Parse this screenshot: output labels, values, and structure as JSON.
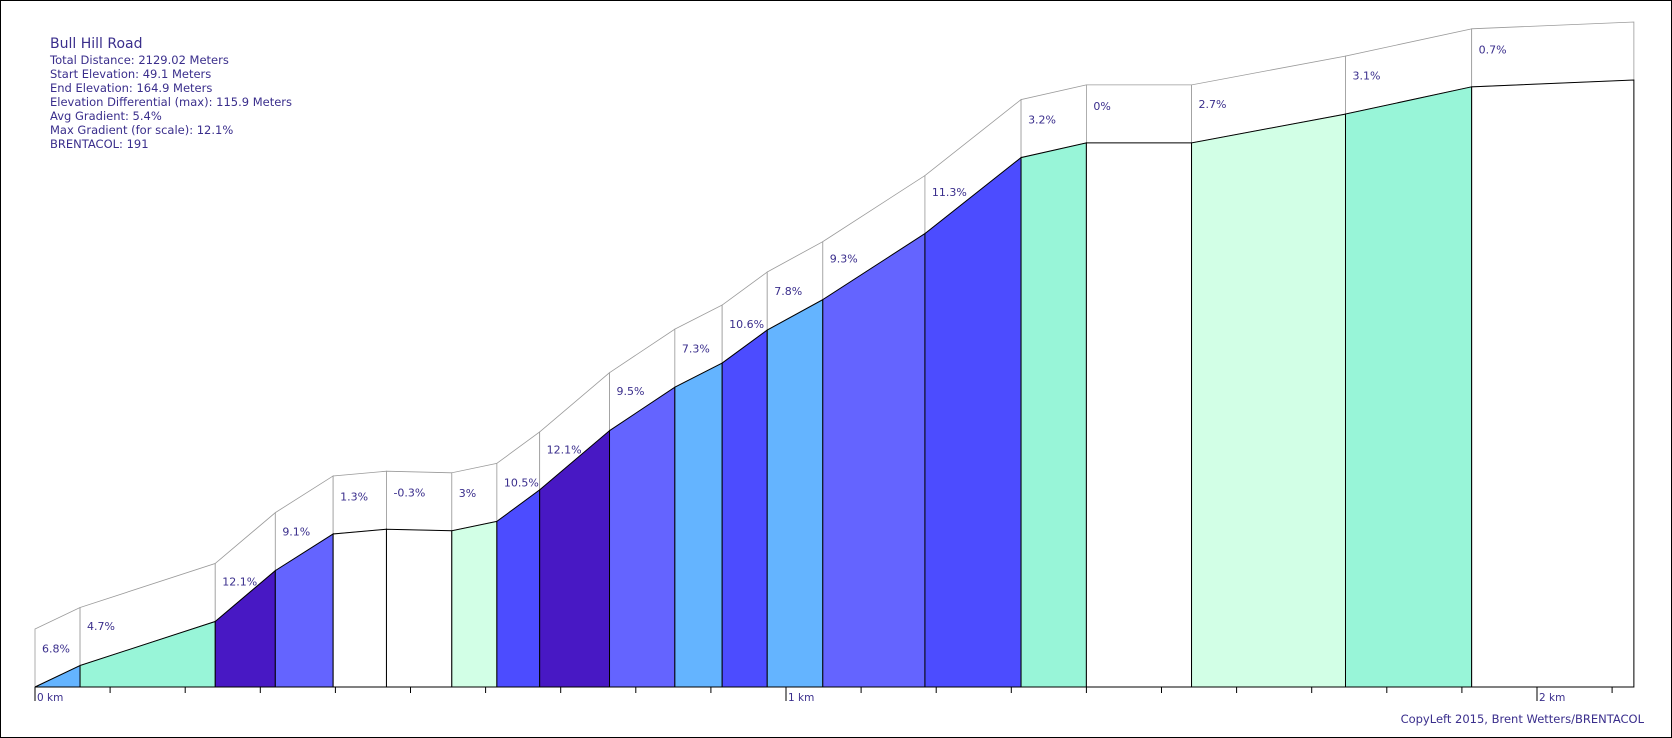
{
  "info": {
    "title": "Bull Hill Road",
    "total_distance": "Total Distance: 2129.02 Meters",
    "start_elevation": "Start Elevation: 49.1 Meters",
    "end_elevation": "End Elevation: 164.9 Meters",
    "elevation_differential": "Elevation Differential (max): 115.9 Meters",
    "avg_gradient": "Avg Gradient: 5.4%",
    "max_gradient": "Max Gradient (for scale): 12.1%",
    "brentacol": "BRENTACOL: 191"
  },
  "credit": "CopyLeft 2015, Brent Wetters/BRENTACOL",
  "chart_data": {
    "type": "area",
    "x_unit": "km",
    "y_unit": "m",
    "xlim": [
      0,
      2.129
    ],
    "ylim": [
      49.1,
      164.9
    ],
    "x_tick_labels": [
      {
        "value": 0,
        "label": "0 km"
      },
      {
        "value": 1,
        "label": "1 km"
      },
      {
        "value": 2,
        "label": "2 km"
      }
    ],
    "minor_tick_step_km": 0.1,
    "segments": [
      {
        "x0": 0.0,
        "x1": 0.06,
        "e0": 49.1,
        "e1": 53.2,
        "gradient": "6.8%",
        "color": "#64b4ff"
      },
      {
        "x0": 0.06,
        "x1": 0.24,
        "e0": 53.2,
        "e1": 61.6,
        "gradient": "4.7%",
        "color": "#98f5d8"
      },
      {
        "x0": 0.24,
        "x1": 0.32,
        "e0": 61.6,
        "e1": 71.3,
        "gradient": "12.1%",
        "color": "#4818c4"
      },
      {
        "x0": 0.32,
        "x1": 0.397,
        "e0": 71.3,
        "e1": 78.3,
        "gradient": "9.1%",
        "color": "#6464ff"
      },
      {
        "x0": 0.397,
        "x1": 0.468,
        "e0": 78.3,
        "e1": 79.2,
        "gradient": "1.3%",
        "color": "#ffffff"
      },
      {
        "x0": 0.468,
        "x1": 0.555,
        "e0": 79.2,
        "e1": 78.9,
        "gradient": "-0.3%",
        "color": "#ffffff"
      },
      {
        "x0": 0.555,
        "x1": 0.615,
        "e0": 78.9,
        "e1": 80.7,
        "gradient": "3%",
        "color": "#d2ffe6"
      },
      {
        "x0": 0.615,
        "x1": 0.672,
        "e0": 80.7,
        "e1": 86.7,
        "gradient": "10.5%",
        "color": "#4c4cff"
      },
      {
        "x0": 0.672,
        "x1": 0.765,
        "e0": 86.7,
        "e1": 98.0,
        "gradient": "12.1%",
        "color": "#4818c4"
      },
      {
        "x0": 0.765,
        "x1": 0.852,
        "e0": 98.0,
        "e1": 106.3,
        "gradient": "9.5%",
        "color": "#6464ff"
      },
      {
        "x0": 0.852,
        "x1": 0.915,
        "e0": 106.3,
        "e1": 110.9,
        "gradient": "7.3%",
        "color": "#64b4ff"
      },
      {
        "x0": 0.915,
        "x1": 0.975,
        "e0": 110.9,
        "e1": 117.2,
        "gradient": "10.6%",
        "color": "#4c4cff"
      },
      {
        "x0": 0.975,
        "x1": 1.049,
        "e0": 117.2,
        "e1": 123.0,
        "gradient": "7.8%",
        "color": "#64b4ff"
      },
      {
        "x0": 1.049,
        "x1": 1.185,
        "e0": 123.0,
        "e1": 135.6,
        "gradient": "9.3%",
        "color": "#6464ff"
      },
      {
        "x0": 1.185,
        "x1": 1.313,
        "e0": 135.6,
        "e1": 150.1,
        "gradient": "11.3%",
        "color": "#4c4cff"
      },
      {
        "x0": 1.313,
        "x1": 1.4,
        "e0": 150.1,
        "e1": 152.9,
        "gradient": "3.2%",
        "color": "#98f5d8"
      },
      {
        "x0": 1.4,
        "x1": 1.54,
        "e0": 152.9,
        "e1": 152.9,
        "gradient": "0%",
        "color": "#ffffff"
      },
      {
        "x0": 1.54,
        "x1": 1.745,
        "e0": 152.9,
        "e1": 158.4,
        "gradient": "2.7%",
        "color": "#d2ffe6"
      },
      {
        "x0": 1.745,
        "x1": 1.913,
        "e0": 158.4,
        "e1": 163.6,
        "gradient": "3.1%",
        "color": "#98f5d8"
      },
      {
        "x0": 1.913,
        "x1": 2.129,
        "e0": 163.6,
        "e1": 164.9,
        "gradient": "0.7%",
        "color": "#ffffff"
      }
    ]
  }
}
